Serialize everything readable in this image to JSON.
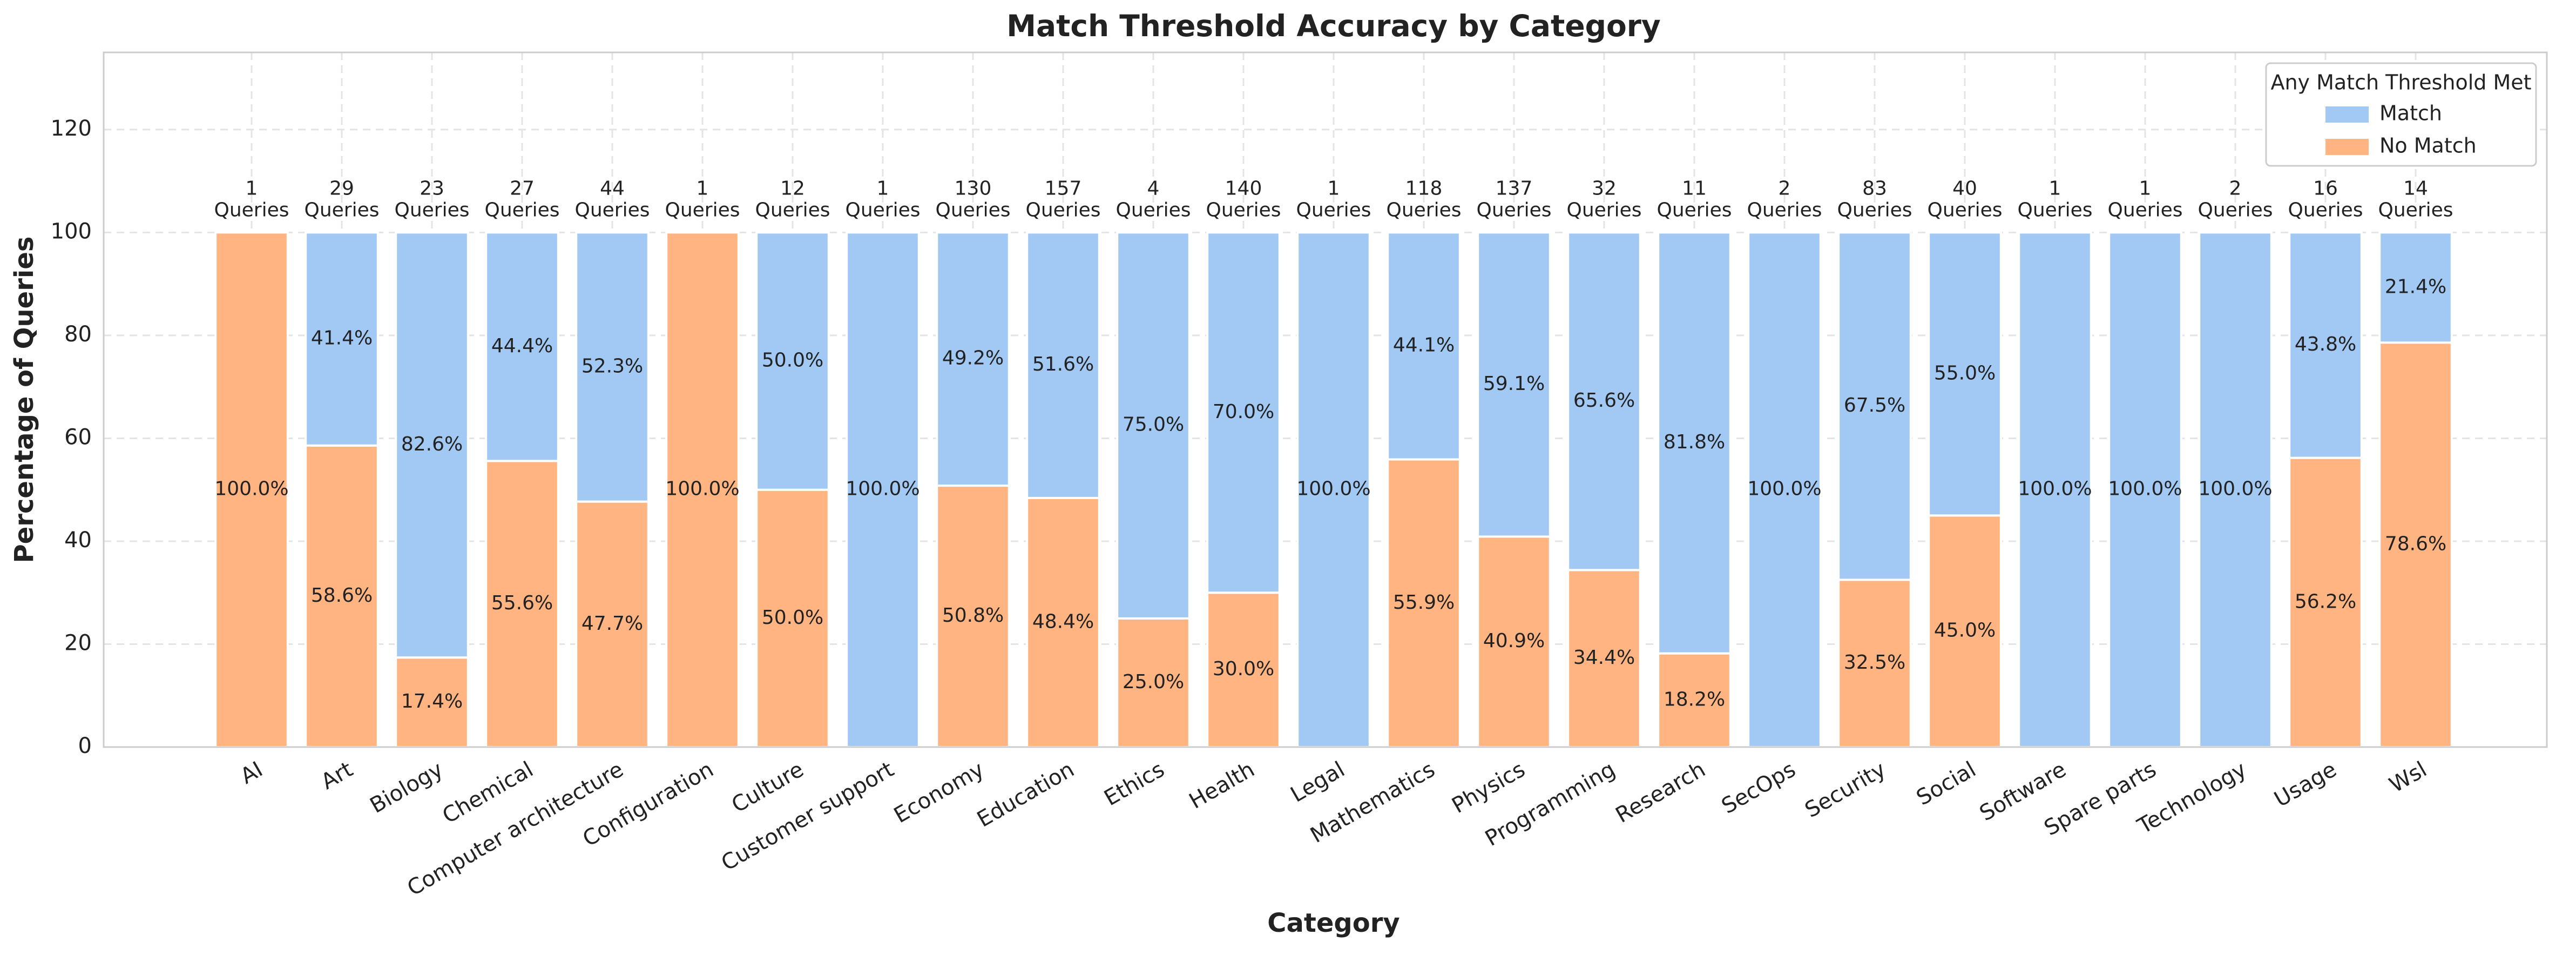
{
  "chart_data": {
    "type": "stacked_bar",
    "title": "Match Threshold Accuracy by Category",
    "x_label": "Category",
    "y_label": "Percentage of Queries",
    "categories": [
      "AI",
      "Art",
      "Biology",
      "Chemical",
      "Computer architecture",
      "Configuration",
      "Culture",
      "Customer support",
      "Economy",
      "Education",
      "Ethics",
      "Health",
      "Legal",
      "Mathematics",
      "Physics",
      "Programming",
      "Research",
      "SecOps",
      "Security",
      "Social",
      "Software",
      "Spare parts",
      "Technology",
      "Usage",
      "Wsl"
    ],
    "series": [
      {
        "name": "Match",
        "color": "#a1c9f4",
        "values": [
          0,
          41.4,
          82.6,
          44.4,
          52.3,
          0,
          50.0,
          100,
          49.2,
          51.6,
          75.0,
          70.0,
          100,
          44.1,
          59.1,
          65.6,
          81.8,
          100,
          67.5,
          55.0,
          100,
          100,
          100,
          43.8,
          21.4
        ],
        "value_labels": [
          null,
          "41.4%",
          "82.6%",
          "44.4%",
          "52.3%",
          null,
          "50.0%",
          "100.0%",
          "49.2%",
          "51.6%",
          "75.0%",
          "70.0%",
          "100.0%",
          "44.1%",
          "59.1%",
          "65.6%",
          "81.8%",
          "100.0%",
          "67.5%",
          "55.0%",
          "100.0%",
          "100.0%",
          "100.0%",
          "43.8%",
          "21.4%"
        ]
      },
      {
        "name": "No Match",
        "color": "#ffb482",
        "values": [
          100,
          58.6,
          17.4,
          55.6,
          47.7,
          100,
          50.0,
          0,
          50.8,
          48.4,
          25.0,
          30.0,
          0,
          55.9,
          40.9,
          34.4,
          18.2,
          0,
          32.5,
          45.0,
          0,
          0,
          0,
          56.2,
          78.6
        ],
        "value_labels": [
          "100.0%",
          "58.6%",
          "17.4%",
          "55.6%",
          "47.7%",
          "100.0%",
          "50.0%",
          null,
          "50.8%",
          "48.4%",
          "25.0%",
          "30.0%",
          null,
          "55.9%",
          "40.9%",
          "34.4%",
          "18.2%",
          null,
          "32.5%",
          "45.0%",
          null,
          null,
          null,
          "56.2%",
          "78.6%"
        ]
      }
    ],
    "query_counts": [
      1,
      29,
      23,
      27,
      44,
      1,
      12,
      1,
      130,
      157,
      4,
      140,
      1,
      118,
      137,
      32,
      11,
      2,
      83,
      40,
      1,
      1,
      2,
      16,
      14
    ],
    "query_word": "Queries",
    "legend_title": "Any Match Threshold Met",
    "legend_position": "upper right",
    "ylim": [
      0,
      135
    ],
    "yticks": [
      0,
      20,
      40,
      60,
      80,
      100,
      120
    ],
    "grid": true
  }
}
